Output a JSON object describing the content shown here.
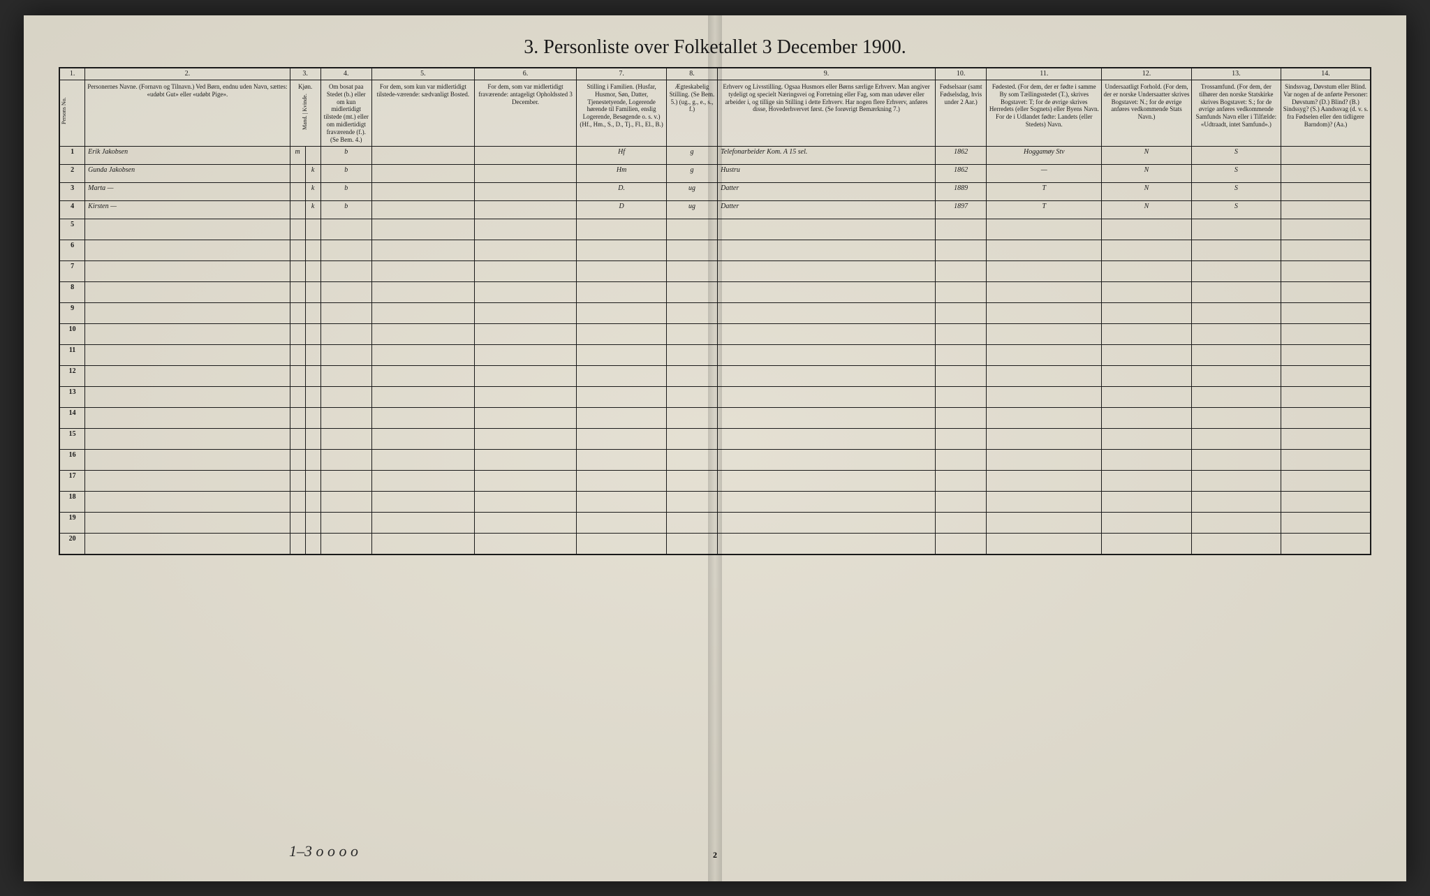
{
  "title": "3. Personliste over Folketallet 3 December 1900.",
  "page_number": "2",
  "footer_annotation": "1–3    o o     o o",
  "column_numbers": [
    "1.",
    "2.",
    "3.",
    "4.",
    "5.",
    "6.",
    "7.",
    "8.",
    "9.",
    "10.",
    "11.",
    "12.",
    "13.",
    "14."
  ],
  "headers": {
    "col1": "Persons No.",
    "col2": "Personernes Navne.\n(Fornavn og Tilnavn.)\nVed Børn, endnu uden Navn, sættes: «udøbt Gut» eller «udøbt Pige».",
    "col3": "Kjøn.",
    "col3_sub": "Mand. | Kvinde.",
    "col4": "Om bosat paa Stedet (b.) eller om kun midlertidigt tilstede (mt.) eller om midlertidigt fraværende (f.). (Se Bem. 4.)",
    "col5": "For dem, som kun var midlertidigt tilstede-værende: sædvanligt Bosted.",
    "col6": "For dem, som var midlertidigt fraværende: antageligt Opholdssted 3 December.",
    "col7": "Stilling i Familien.\n(Husfar, Husmor, Søn, Datter, Tjenestetyende, Logerende hørende til Familien, enslig Logerende, Besøgende o. s. v.)\n(Hf., Hm., S., D., Tj., Fl., El., B.)",
    "col8": "Ægteskabelig Stilling.\n(Se Bem. 5.)\n(ug., g., e., s., f.)",
    "col9": "Erhverv og Livsstilling.\nOgsaa Husmors eller Børns særlige Erhverv. Man angiver tydeligt og specielt Næringsvei og Forretning eller Fag, som man udøver eller arbeider i, og tillige sin Stilling i dette Erhverv.\nHar nogen flere Erhverv, anføres disse, Hovederhvervet først.\n(Se forøvrigt Bemærkning 7.)",
    "col10": "Fødselsaar\n(samt Fødselsdag, hvis under 2 Aar.)",
    "col11": "Fødested.\n(For dem, der er fødte i samme By som Tællingsstedet (T.), skrives Bogstavet: T; for de øvrige skrives Herredets (eller Sognets) eller Byens Navn. For de i Udlandet fødte: Landets (eller Stedets) Navn.",
    "col12": "Undersaatligt Forhold.\n(For dem, der er norske Undersaatter skrives Bogstavet: N.; for de øvrige anføres vedkommende Stats Navn.)",
    "col13": "Trossamfund.\n(For dem, der tilhører den norske Statskirke skrives Bogstavet: S.; for de øvrige anføres vedkommende Samfunds Navn eller i Tilfælde: «Udtraadt, intet Samfund».)",
    "col14": "Sindssvag, Døvstum eller Blind.\nVar nogen af de anførte Personer:\nDøvstum? (D.)\nBlind? (B.)\nSindssyg? (S.)\nAandssvag (d. v. s. fra Fødselen eller den tidligere Barndom)? (Aa.)"
  },
  "rows": [
    {
      "num": "1",
      "name": "Erik Jakobsen",
      "sex_m": "m",
      "sex_k": "",
      "status": "b",
      "col5": "",
      "col6": "",
      "family": "Hf",
      "marital": "g",
      "occupation": "Telefonarbeider  Kom. A 15 sel.",
      "year": "1862",
      "birthplace": "Hoggamøy Stv",
      "nat": "N",
      "rel": "S",
      "col14": ""
    },
    {
      "num": "2",
      "name": "Gunda Jakobsen",
      "sex_m": "",
      "sex_k": "k",
      "status": "b",
      "col5": "",
      "col6": "",
      "family": "Hm",
      "marital": "g",
      "occupation": "Hustru",
      "year": "1862",
      "birthplace": "—",
      "nat": "N",
      "rel": "S",
      "col14": ""
    },
    {
      "num": "3",
      "name": "Marta      —",
      "sex_m": "",
      "sex_k": "k",
      "status": "b",
      "col5": "",
      "col6": "",
      "family": "D.",
      "marital": "ug",
      "occupation": "Datter",
      "year": "1889",
      "birthplace": "T",
      "nat": "N",
      "rel": "S",
      "col14": ""
    },
    {
      "num": "4",
      "name": "Kirsten    —",
      "sex_m": "",
      "sex_k": "k",
      "status": "b",
      "col5": "",
      "col6": "",
      "family": "D",
      "marital": "ug",
      "occupation": "Datter",
      "year": "1897",
      "birthplace": "T",
      "nat": "N",
      "rel": "S",
      "col14": ""
    }
  ],
  "empty_rows": [
    "5",
    "6",
    "7",
    "8",
    "9",
    "10",
    "11",
    "12",
    "13",
    "14",
    "15",
    "16",
    "17",
    "18",
    "19",
    "20"
  ],
  "styling": {
    "page_bg": "#e8e4d8",
    "border_color": "#1a1a1a",
    "text_color": "#1a1a1a",
    "handwriting_color": "#2a2a2a",
    "title_fontsize": 28,
    "header_fontsize": 9,
    "cell_fontsize": 10,
    "handwriting_fontsize": 18
  },
  "column_widths_pct": [
    2,
    16,
    1.2,
    1.2,
    4,
    8,
    8,
    7,
    4,
    17,
    4,
    9,
    7,
    7,
    7
  ]
}
